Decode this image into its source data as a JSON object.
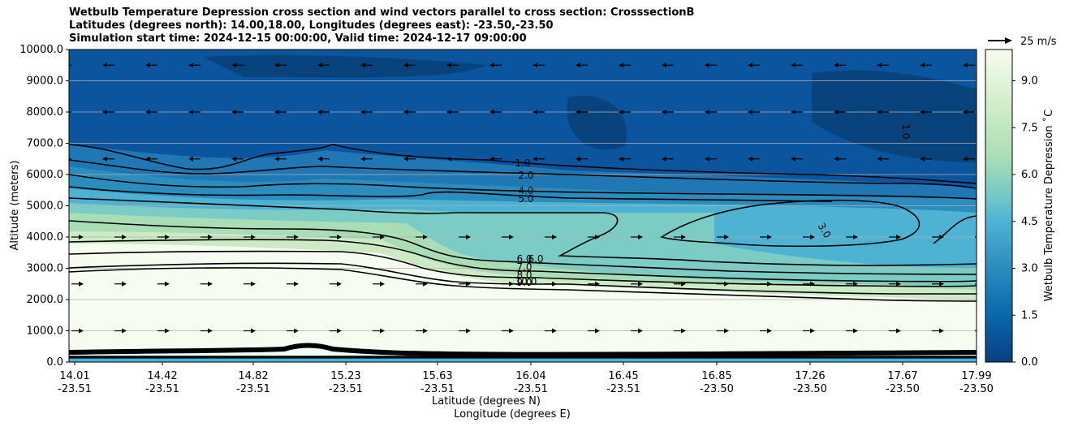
{
  "titles": [
    "Wetbulb Temperature Depression cross section and wind vectors parallel to cross section: CrosssectionB",
    "Latitudes (degrees north): 14.00,18.00, Longitudes (degrees east): -23.50,-23.50",
    "Simulation start time: 2024-12-15 00:00:00, Valid time: 2024-12-17 09:00:00"
  ],
  "chart_data": {
    "type": "contour cross-section with wind vectors",
    "title": "Wetbulb Temperature Depression cross section and wind vectors parallel to cross section: CrosssectionB",
    "ylabel": "Altitude (meters)",
    "xlabel_lat": "Latitude (degrees N)",
    "xlabel_lon": "Longitude (degrees E)",
    "ylim": [
      0,
      10000
    ],
    "yticks": [
      "0.0",
      "1000.0",
      "2000.0",
      "3000.0",
      "4000.0",
      "5000.0",
      "6000.0",
      "7000.0",
      "8000.0",
      "9000.0",
      "10000.0"
    ],
    "xticks": [
      {
        "lat": "14.01",
        "lon": "-23.51"
      },
      {
        "lat": "14.42",
        "lon": "-23.51"
      },
      {
        "lat": "14.82",
        "lon": "-23.51"
      },
      {
        "lat": "15.23",
        "lon": "-23.51"
      },
      {
        "lat": "15.63",
        "lon": "-23.51"
      },
      {
        "lat": "16.04",
        "lon": "-23.51"
      },
      {
        "lat": "16.45",
        "lon": "-23.51"
      },
      {
        "lat": "16.85",
        "lon": "-23.50"
      },
      {
        "lat": "17.26",
        "lon": "-23.50"
      },
      {
        "lat": "17.67",
        "lon": "-23.50"
      },
      {
        "lat": "17.99",
        "lon": "-23.50"
      }
    ],
    "grid": "horizontal lines at y ticks",
    "colorbar": {
      "label": "Wetbulb Temperature Depression ˚C",
      "ticks": [
        "0.0",
        "1.5",
        "3.0",
        "4.5",
        "6.0",
        "7.5",
        "9.0"
      ],
      "range": [
        0,
        10
      ],
      "levels": 20,
      "colormap": "GnBu reversed (dark blue = 0, pale green/white = 10)"
    },
    "quiver_key": {
      "label": "25 m/s"
    },
    "contour_labels": [
      "1.0",
      "2.0",
      "4.0",
      "5.0",
      "6.0",
      "7.0",
      "8.0",
      "9.0",
      "10.0",
      "3.0",
      "6.0",
      "1.0"
    ],
    "wind_layers": [
      {
        "altitude": 9500,
        "direction": "west"
      },
      {
        "altitude": 8000,
        "direction": "west"
      },
      {
        "altitude": 6500,
        "direction": "west"
      },
      {
        "altitude": 4000,
        "direction": "east"
      },
      {
        "altitude": 2500,
        "direction": "east"
      },
      {
        "altitude": 1000,
        "direction": "east"
      }
    ]
  },
  "colors": {
    "dark": "#084081",
    "mid": "#0868ac",
    "blue": "#2b8cbe",
    "light": "#4eb3d3",
    "teal": "#7bccc4",
    "green": "#a8ddb5",
    "pale": "#ccebc5",
    "white": "#f7fcf0"
  }
}
